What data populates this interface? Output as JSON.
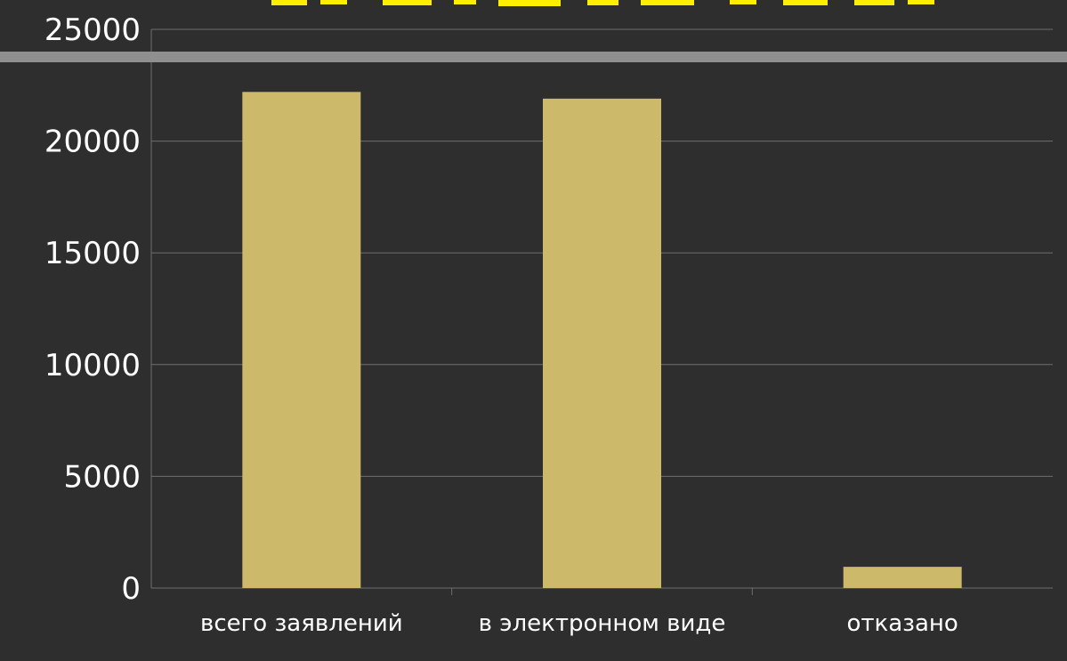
{
  "chart_data": {
    "type": "bar",
    "title": "",
    "xlabel": "",
    "ylabel": "",
    "categories": [
      "всего заявлений",
      "в электронном виде",
      "отказано"
    ],
    "values": [
      22200,
      21900,
      950
    ],
    "ylim": [
      0,
      25000
    ],
    "yticks": [
      "0",
      "5000",
      "10000",
      "15000",
      "20000",
      "25000"
    ],
    "grid": true,
    "colors": {
      "background": "#2e2e2e",
      "bar": "#cdb96a",
      "grid": "#6e6e6e",
      "text": "#ffffff",
      "title_fragment": "#ffee00",
      "divider": "#8f8f8f"
    }
  }
}
